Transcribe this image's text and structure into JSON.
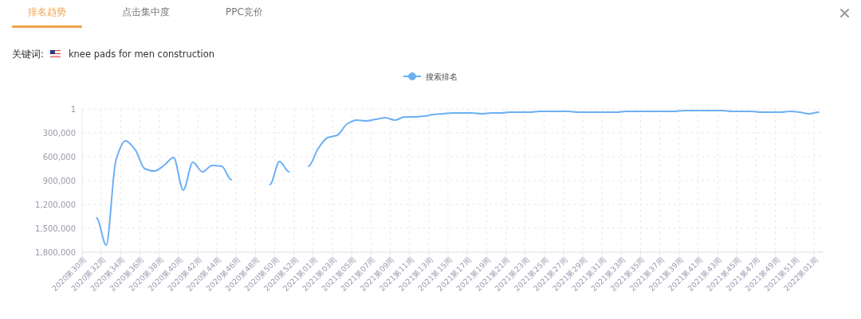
{
  "chart_data": {
    "type": "line",
    "title": "关键词:",
    "subtitle": "knee pads for men construction",
    "annotations": [
      "排名趋势",
      "点击集中度",
      "PPC竞价"
    ],
    "categories": [
      "2020第30周",
      null,
      "2020第32周",
      null,
      "2020第34周",
      null,
      "2020第36周",
      null,
      "2020第38周",
      null,
      "2020第40周",
      null,
      "2020第42周",
      null,
      "2020第44周",
      null,
      "2020第46周",
      null,
      "2020第48周",
      null,
      "2020第50周",
      null,
      "2020第52周",
      null,
      "2021第01周",
      null,
      "2021第03周",
      null,
      "2021第05周",
      null,
      "2021第07周",
      null,
      "2021第09周",
      null,
      "2021第11周",
      null,
      "2021第13周",
      null,
      "2021第15周",
      null,
      "2021第17周",
      null,
      "2021第19周",
      null,
      "2021第21周",
      null,
      "2021第23周",
      null,
      "2021第25周",
      null,
      "2021第27周",
      null,
      "2021第29周",
      null,
      "2021第31周",
      null,
      "2021第33周",
      null,
      "2021第35周",
      null,
      "2021第37周",
      null,
      "2021第39周",
      null,
      "2021第41周",
      null,
      "2021第43周",
      null,
      "2021第45周",
      null,
      "2021第47周",
      null,
      "2021第49周",
      null,
      "2021第51周",
      null,
      "2022第01周"
    ],
    "series": [
      {
        "name": "搜索排名",
        "color": "#6cb0f5",
        "values": [
          null,
          1370000,
          1710000,
          650000,
          400000,
          510000,
          750000,
          780000,
          710000,
          610000,
          1020000,
          670000,
          790000,
          710000,
          720000,
          890000,
          null,
          null,
          null,
          950000,
          660000,
          790000,
          null,
          720000,
          500000,
          360000,
          330000,
          190000,
          140000,
          150000,
          130000,
          110000,
          140000,
          100000,
          100000,
          90000,
          70000,
          60000,
          50000,
          50000,
          50000,
          60000,
          50000,
          50000,
          40000,
          40000,
          40000,
          30000,
          30000,
          30000,
          30000,
          40000,
          40000,
          40000,
          40000,
          40000,
          30000,
          30000,
          30000,
          30000,
          30000,
          30000,
          20000,
          20000,
          20000,
          20000,
          20000,
          30000,
          30000,
          30000,
          40000,
          40000,
          40000,
          30000,
          40000,
          60000,
          40000
        ]
      }
    ],
    "ylim": [
      1800000,
      1
    ],
    "yticks": [
      {
        "value": 1,
        "label": "1"
      },
      {
        "value": 300000,
        "label": "300,000"
      },
      {
        "value": 600000,
        "label": "600,000"
      },
      {
        "value": 900000,
        "label": "900,000"
      },
      {
        "value": 1200000,
        "label": "1,200,000"
      },
      {
        "value": 1500000,
        "label": "1,500,000"
      },
      {
        "value": 1800000,
        "label": "1,800,000"
      }
    ],
    "grid": true,
    "legend": "top"
  }
}
